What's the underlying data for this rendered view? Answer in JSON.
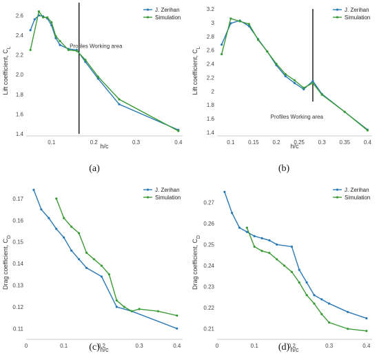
{
  "chart_data": [
    {
      "type": "line",
      "caption": "(a)",
      "xlabel": "h/c",
      "ylabel": "Lift coefficient, C_L",
      "xlim": [
        0.04,
        0.41
      ],
      "ylim": [
        1.38,
        2.7
      ],
      "xticks": [
        "0.1",
        "0.2",
        "0.3",
        "0.4"
      ],
      "xtick_values": [
        0.1,
        0.2,
        0.3,
        0.4
      ],
      "yticks": [
        "1.4",
        "1.6",
        "1.8",
        "2.0",
        "2.2",
        "2.4",
        "2.6"
      ],
      "ytick_values": [
        1.4,
        1.6,
        1.8,
        2.0,
        2.2,
        2.4,
        2.6
      ],
      "grid": false,
      "legend_position": "top-right",
      "vline": 0.165,
      "vline_range": [
        1.4,
        2.73
      ],
      "annotation": "Profiles Working area",
      "annotation_at": [
        0.205,
        2.27
      ],
      "series": [
        {
          "name": "J. Zerihan",
          "color": "#2878b5",
          "x": [
            0.05,
            0.06,
            0.07,
            0.08,
            0.09,
            0.1,
            0.11,
            0.12,
            0.14,
            0.16,
            0.18,
            0.21,
            0.26,
            0.4
          ],
          "y": [
            2.45,
            2.56,
            2.6,
            2.59,
            2.57,
            2.5,
            2.37,
            2.3,
            2.26,
            2.25,
            2.13,
            1.96,
            1.7,
            1.44
          ]
        },
        {
          "name": "Simulation",
          "color": "#3a9b35",
          "x": [
            0.05,
            0.07,
            0.08,
            0.09,
            0.1,
            0.11,
            0.12,
            0.14,
            0.16,
            0.18,
            0.21,
            0.26,
            0.4
          ],
          "y": [
            2.25,
            2.64,
            2.58,
            2.58,
            2.53,
            2.39,
            2.34,
            2.25,
            2.24,
            2.15,
            1.98,
            1.75,
            1.43
          ]
        }
      ]
    },
    {
      "type": "line",
      "caption": "(b)",
      "xlabel": "h/c",
      "ylabel": "Lift coefficient, C_L",
      "xlim": [
        0.07,
        0.41
      ],
      "ylim": [
        1.35,
        3.25
      ],
      "xticks": [
        "0.1",
        "0.15",
        "0.2",
        "0.25",
        "0.3",
        "0.35",
        "0.4"
      ],
      "xtick_values": [
        0.1,
        0.15,
        0.2,
        0.25,
        0.3,
        0.35,
        0.4
      ],
      "yticks": [
        "1.4",
        "1.6",
        "1.8",
        "2",
        "2.2",
        "2.4",
        "2.6",
        "2.8",
        "3",
        "3.2"
      ],
      "ytick_values": [
        1.4,
        1.6,
        1.8,
        2.0,
        2.2,
        2.4,
        2.6,
        2.8,
        3.0,
        3.2
      ],
      "grid": false,
      "legend_position": "top-right",
      "vline": 0.28,
      "vline_range": [
        1.85,
        3.2
      ],
      "annotation": "Profiles Working area",
      "annotation_at": [
        0.245,
        1.6
      ],
      "series": [
        {
          "name": "J. Zerihan",
          "color": "#2878b5",
          "x": [
            0.08,
            0.1,
            0.12,
            0.14,
            0.16,
            0.18,
            0.2,
            0.22,
            0.24,
            0.26,
            0.28,
            0.3,
            0.35,
            0.4
          ],
          "y": [
            2.68,
            2.99,
            3.03,
            2.95,
            2.76,
            2.58,
            2.38,
            2.22,
            2.12,
            2.03,
            2.15,
            1.96,
            1.7,
            1.44
          ]
        },
        {
          "name": "Simulation",
          "color": "#3a9b35",
          "x": [
            0.08,
            0.1,
            0.12,
            0.14,
            0.16,
            0.18,
            0.2,
            0.22,
            0.24,
            0.26,
            0.28,
            0.3,
            0.35,
            0.4
          ],
          "y": [
            2.54,
            3.06,
            3.02,
            2.98,
            2.75,
            2.58,
            2.4,
            2.25,
            2.16,
            2.05,
            2.12,
            1.95,
            1.7,
            1.43
          ]
        }
      ]
    },
    {
      "type": "line",
      "caption": "(c)",
      "xlabel": "h/c",
      "ylabel": "Drag coefficient, C_D",
      "xlim": [
        0.0,
        0.415
      ],
      "ylim": [
        0.105,
        0.176
      ],
      "xticks": [
        "0",
        "0.1",
        "0.2",
        "0.3",
        "0.4"
      ],
      "xtick_values": [
        0.0,
        0.1,
        0.2,
        0.3,
        0.4
      ],
      "yticks": [
        "0.11",
        "0.12",
        "0.13",
        "0.14",
        "0.15",
        "0.16",
        "0.17"
      ],
      "ytick_values": [
        0.11,
        0.12,
        0.13,
        0.14,
        0.15,
        0.16,
        0.17
      ],
      "grid": false,
      "legend_position": "top-right",
      "series": [
        {
          "name": "J. Zerihan",
          "color": "#2878b5",
          "x": [
            0.02,
            0.04,
            0.06,
            0.08,
            0.1,
            0.12,
            0.14,
            0.16,
            0.2,
            0.24,
            0.28,
            0.4
          ],
          "y": [
            0.174,
            0.165,
            0.161,
            0.156,
            0.152,
            0.146,
            0.142,
            0.138,
            0.134,
            0.12,
            0.118,
            0.11
          ]
        },
        {
          "name": "Simulation",
          "color": "#3a9b35",
          "x": [
            0.08,
            0.1,
            0.12,
            0.14,
            0.16,
            0.18,
            0.2,
            0.22,
            0.24,
            0.26,
            0.28,
            0.3,
            0.35,
            0.4
          ],
          "y": [
            0.17,
            0.161,
            0.157,
            0.154,
            0.145,
            0.142,
            0.139,
            0.135,
            0.123,
            0.12,
            0.118,
            0.119,
            0.118,
            0.116
          ]
        }
      ]
    },
    {
      "type": "line",
      "caption": "(d)",
      "xlabel": "h/c",
      "ylabel": "Drag coefficient, C_D",
      "xlim": [
        0.0,
        0.415
      ],
      "ylim": [
        0.205,
        0.278
      ],
      "xticks": [
        "0",
        "0.1",
        "0.2",
        "0.3",
        "0.4"
      ],
      "xtick_values": [
        0.0,
        0.1,
        0.2,
        0.3,
        0.4
      ],
      "yticks": [
        "0.21",
        "0.22",
        "0.23",
        "0.24",
        "0.25",
        "0.26",
        "0.27"
      ],
      "ytick_values": [
        0.21,
        0.22,
        0.23,
        0.24,
        0.25,
        0.26,
        0.27
      ],
      "grid": false,
      "legend_position": "top-right",
      "series": [
        {
          "name": "J. Zerihan",
          "color": "#2878b5",
          "x": [
            0.02,
            0.04,
            0.06,
            0.08,
            0.1,
            0.12,
            0.14,
            0.16,
            0.2,
            0.22,
            0.24,
            0.26,
            0.28,
            0.3,
            0.35,
            0.4
          ],
          "y": [
            0.275,
            0.265,
            0.258,
            0.256,
            0.254,
            0.253,
            0.252,
            0.25,
            0.249,
            0.238,
            0.232,
            0.226,
            0.224,
            0.222,
            0.218,
            0.215
          ]
        },
        {
          "name": "Simulation",
          "color": "#3a9b35",
          "x": [
            0.08,
            0.1,
            0.12,
            0.14,
            0.16,
            0.18,
            0.2,
            0.22,
            0.24,
            0.26,
            0.28,
            0.3,
            0.35,
            0.4
          ],
          "y": [
            0.258,
            0.249,
            0.247,
            0.246,
            0.243,
            0.24,
            0.237,
            0.232,
            0.226,
            0.222,
            0.217,
            0.213,
            0.21,
            0.209
          ]
        }
      ]
    }
  ]
}
